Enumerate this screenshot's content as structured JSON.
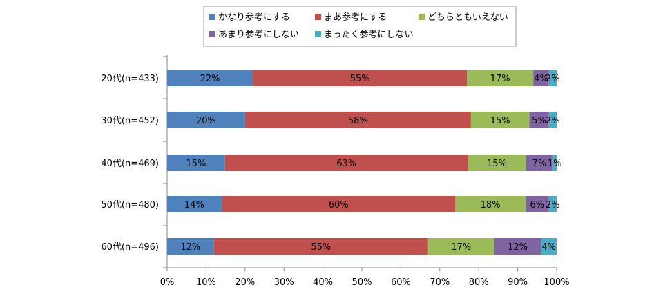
{
  "chart_data": {
    "type": "bar",
    "orientation": "horizontal",
    "stacked": "percent",
    "categories": [
      "20代(n=433)",
      "30代(n=452)",
      "40代(n=469)",
      "50代(n=480)",
      "60代(n=496)"
    ],
    "series": [
      {
        "name": "かなり参考にする",
        "color": "#4f81bd",
        "values": [
          22,
          20,
          15,
          14,
          12
        ],
        "labels": [
          "22%",
          "20%",
          "15%",
          "14%",
          "12%"
        ]
      },
      {
        "name": "まあ参考にする",
        "color": "#c0504d",
        "values": [
          55,
          58,
          63,
          60,
          55
        ],
        "labels": [
          "55%",
          "58%",
          "63%",
          "60%",
          "55%"
        ]
      },
      {
        "name": "どちらともいえない",
        "color": "#9bbb59",
        "values": [
          17,
          15,
          15,
          18,
          17
        ],
        "labels": [
          "17%",
          "15%",
          "15%",
          "18%",
          "17%"
        ]
      },
      {
        "name": "あまり参考にしない",
        "color": "#8064a2",
        "values": [
          4,
          5,
          7,
          6,
          12
        ],
        "labels": [
          "4%",
          "5%",
          "7%",
          "6%",
          "12%"
        ]
      },
      {
        "name": "まったく参考にしない",
        "color": "#4bacc6",
        "values": [
          2,
          2,
          1,
          2,
          4
        ],
        "labels": [
          "2%",
          "2%",
          "1%",
          "2%",
          "4%"
        ]
      }
    ],
    "xlim": [
      0,
      100
    ],
    "x_ticks": [
      "0%",
      "10%",
      "20%",
      "30%",
      "40%",
      "50%",
      "60%",
      "70%",
      "80%",
      "90%",
      "100%"
    ],
    "legend_position": "top",
    "grid": false
  }
}
